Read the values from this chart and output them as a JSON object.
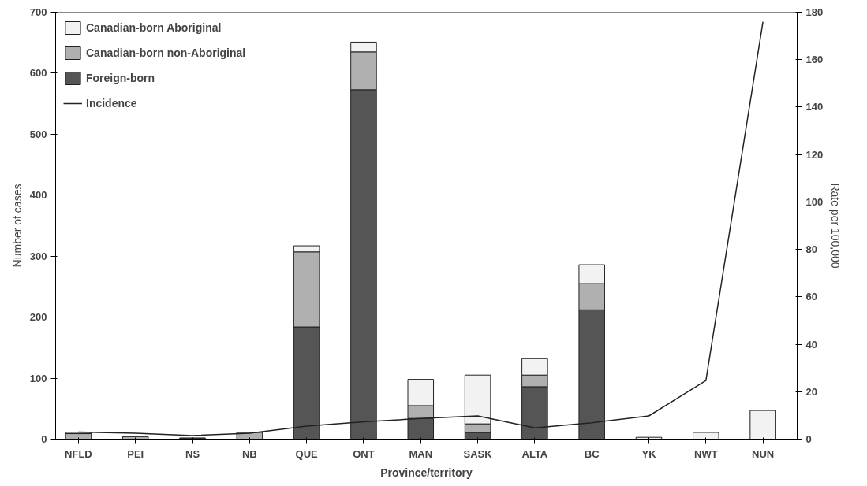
{
  "chart_data": {
    "type": "bar",
    "stacked": true,
    "xlabel": "Province/territory",
    "ylabel": "Number of cases",
    "y2label": "Rate per 100,000",
    "categories": [
      "NFLD",
      "PEI",
      "NS",
      "NB",
      "QUE",
      "ONT",
      "MAN",
      "SASK",
      "ALTA",
      "BC",
      "YK",
      "NWT",
      "NUN"
    ],
    "series": [
      {
        "name": "Foreign-born",
        "color": "#555555",
        "values": [
          null,
          null,
          1,
          null,
          184,
          573,
          34,
          11,
          86,
          212,
          null,
          null,
          null
        ]
      },
      {
        "name": "Canadian-born non-Aboriginal",
        "color": "#b0b0b0",
        "values": [
          9,
          4,
          1,
          11,
          123,
          62,
          21,
          14,
          19,
          43,
          null,
          null,
          null
        ]
      },
      {
        "name": "Canadian-born Aboriginal",
        "color": "#f2f2f2",
        "values": [
          2,
          null,
          null,
          null,
          10,
          16,
          43,
          80,
          27,
          31,
          3,
          11,
          47
        ]
      },
      {
        "name": "Incidence",
        "type": "line",
        "axis": "y2",
        "color": "#222222",
        "values": [
          3.0,
          2.5,
          1.5,
          2.5,
          5.5,
          7.3,
          8.7,
          9.8,
          4.7,
          6.9,
          9.8,
          24.7,
          176
        ]
      }
    ],
    "ylim": [
      0,
      700
    ],
    "yticks": [
      0,
      100,
      200,
      300,
      400,
      500,
      600,
      700
    ],
    "y2lim": [
      0,
      180
    ],
    "y2ticks": [
      0,
      20,
      40,
      60,
      80,
      100,
      120,
      140,
      160,
      180
    ],
    "legend": "top left",
    "grid": false
  }
}
